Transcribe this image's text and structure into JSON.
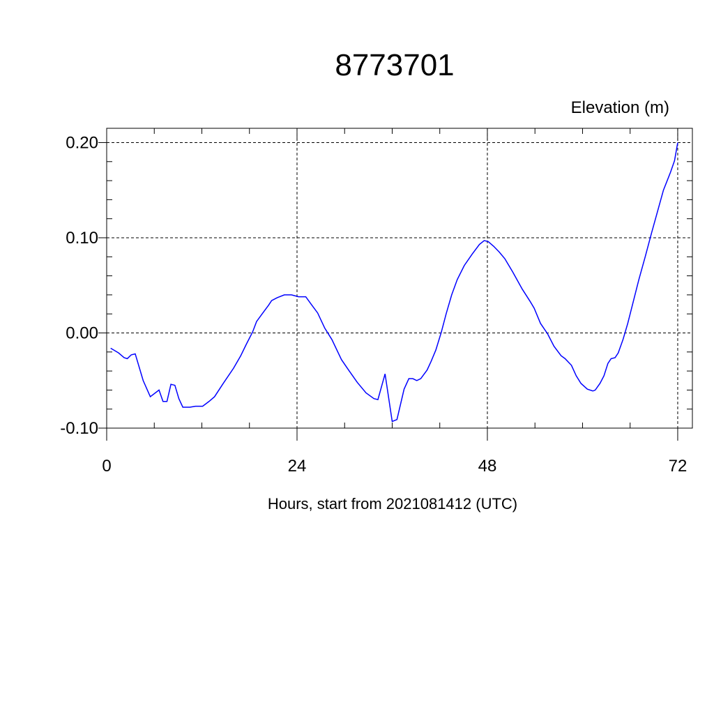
{
  "chart_data": {
    "type": "line",
    "title": "8773701",
    "ylabel": "Elevation (m)",
    "xlabel": "Hours, start from 2021081412 (UTC)",
    "xlim": [
      0,
      73.85
    ],
    "ylim": [
      -0.1,
      0.215
    ],
    "xticks": [
      0,
      24,
      48,
      72
    ],
    "x_minor_ticks": [
      6,
      12,
      18,
      30,
      36,
      42,
      54,
      60,
      66
    ],
    "yticks": [
      {
        "value": -0.1,
        "label": "-0.10"
      },
      {
        "value": 0,
        "label": "0.00"
      },
      {
        "value": 0.1,
        "label": "0.10"
      },
      {
        "value": 0.2,
        "label": "0.20"
      }
    ],
    "y_minor_ticks": [
      -0.08,
      -0.06,
      -0.04,
      -0.02,
      0.02,
      0.04,
      0.06,
      0.08,
      0.12,
      0.14,
      0.16,
      0.18
    ],
    "grid": true,
    "series": [
      {
        "name": "Elevation",
        "color": "#0000ff",
        "x": [
          0.5,
          1.5,
          2.2,
          2.6,
          3.1,
          3.6,
          4.6,
          5.5,
          6.6,
          7.1,
          7.6,
          8.1,
          8.6,
          9.1,
          9.6,
          10.5,
          11.2,
          12.1,
          12.9,
          13.6,
          14.7,
          16.0,
          16.9,
          17.6,
          18.4,
          18.9,
          19.6,
          20.4,
          20.8,
          21.5,
          22.4,
          23.3,
          24.2,
          25.1,
          25.8,
          26.6,
          27.5,
          28.4,
          29.6,
          30.5,
          31.6,
          32.7,
          33.7,
          34.2,
          35.1,
          36.0,
          36.6,
          37.5,
          38.1,
          38.6,
          39.1,
          39.6,
          40.4,
          40.9,
          41.5,
          42.2,
          42.8,
          43.5,
          44.2,
          45.1,
          46.1,
          47.0,
          47.6,
          48.1,
          48.8,
          49.5,
          50.2,
          51.2,
          52.4,
          53.4,
          53.9,
          54.7,
          55.6,
          56.4,
          57.3,
          57.8,
          58.6,
          59.2,
          59.8,
          60.6,
          61.3,
          61.6,
          62.2,
          62.7,
          63.2,
          63.6,
          64.1,
          64.5,
          65.1,
          65.7,
          66.4,
          67.1,
          67.9,
          68.7,
          69.5,
          70.2,
          71.1,
          71.6,
          72.0
        ],
        "values": [
          -0.016,
          -0.021,
          -0.026,
          -0.027,
          -0.023,
          -0.022,
          -0.05,
          -0.067,
          -0.06,
          -0.072,
          -0.072,
          -0.054,
          -0.055,
          -0.069,
          -0.078,
          -0.078,
          -0.077,
          -0.077,
          -0.072,
          -0.067,
          -0.053,
          -0.037,
          -0.024,
          -0.012,
          0.001,
          0.012,
          0.02,
          0.029,
          0.034,
          0.037,
          0.04,
          0.04,
          0.038,
          0.038,
          0.03,
          0.021,
          0.005,
          -0.007,
          -0.028,
          -0.039,
          -0.052,
          -0.063,
          -0.069,
          -0.07,
          -0.043,
          -0.093,
          -0.091,
          -0.059,
          -0.048,
          -0.048,
          -0.05,
          -0.048,
          -0.039,
          -0.03,
          -0.018,
          0.001,
          0.02,
          0.04,
          0.056,
          0.071,
          0.083,
          0.093,
          0.097,
          0.096,
          0.091,
          0.085,
          0.078,
          0.064,
          0.046,
          0.033,
          0.026,
          0.01,
          -0.001,
          -0.014,
          -0.024,
          -0.027,
          -0.034,
          -0.045,
          -0.053,
          -0.059,
          -0.061,
          -0.06,
          -0.053,
          -0.045,
          -0.032,
          -0.027,
          -0.026,
          -0.021,
          -0.007,
          0.01,
          0.033,
          0.056,
          0.08,
          0.105,
          0.129,
          0.15,
          0.169,
          0.181,
          0.2
        ]
      }
    ]
  }
}
